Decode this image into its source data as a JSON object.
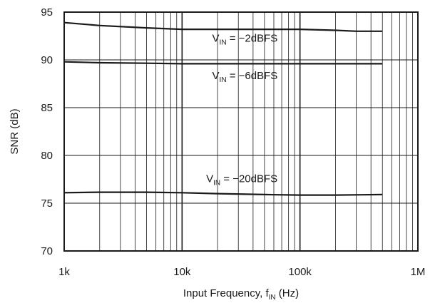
{
  "chart_data": {
    "type": "line",
    "title": "",
    "xlabel": {
      "text": "Input Frequency, f",
      "sub": "IN",
      "suffix": " (Hz)"
    },
    "ylabel": "SNR (dB)",
    "xscale": "log",
    "xlim": [
      1000,
      1000000
    ],
    "ylim": [
      70,
      95
    ],
    "grid": true,
    "x_ticks": [
      {
        "value": 1000,
        "label": "1k"
      },
      {
        "value": 10000,
        "label": "10k"
      },
      {
        "value": 100000,
        "label": "100k"
      },
      {
        "value": 1000000,
        "label": "1M"
      }
    ],
    "y_ticks": [
      {
        "value": 70,
        "label": "70"
      },
      {
        "value": 75,
        "label": "75"
      },
      {
        "value": 80,
        "label": "80"
      },
      {
        "value": 85,
        "label": "85"
      },
      {
        "value": 90,
        "label": "90"
      },
      {
        "value": 95,
        "label": "95"
      }
    ],
    "series": [
      {
        "color": "#1a1a1a",
        "x": [
          1000,
          2000,
          5000,
          10000,
          20000,
          50000,
          100000,
          200000,
          300000,
          500000
        ],
        "y": [
          93.9,
          93.6,
          93.35,
          93.2,
          93.2,
          93.2,
          93.2,
          93.1,
          93.0,
          93.0
        ]
      },
      {
        "color": "#1a1a1a",
        "x": [
          1000,
          2000,
          5000,
          10000,
          20000,
          50000,
          100000,
          200000,
          500000
        ],
        "y": [
          89.8,
          89.7,
          89.65,
          89.6,
          89.6,
          89.6,
          89.6,
          89.6,
          89.6
        ]
      },
      {
        "color": "#1a1a1a",
        "x": [
          1000,
          2000,
          5000,
          10000,
          20000,
          50000,
          100000,
          200000,
          500000
        ],
        "y": [
          76.1,
          76.15,
          76.15,
          76.1,
          76.0,
          75.9,
          75.85,
          75.85,
          75.9
        ]
      }
    ],
    "annotations": [
      {
        "pre": "V",
        "sub": "IN",
        "post": " = −2dBFS",
        "x": 18000,
        "y": 91.9
      },
      {
        "pre": "V",
        "sub": "IN",
        "post": " = −6dBFS",
        "x": 18000,
        "y": 88.0
      },
      {
        "pre": "V",
        "sub": "IN",
        "post": " = −20dBFS",
        "x": 16000,
        "y": 77.2
      }
    ]
  }
}
